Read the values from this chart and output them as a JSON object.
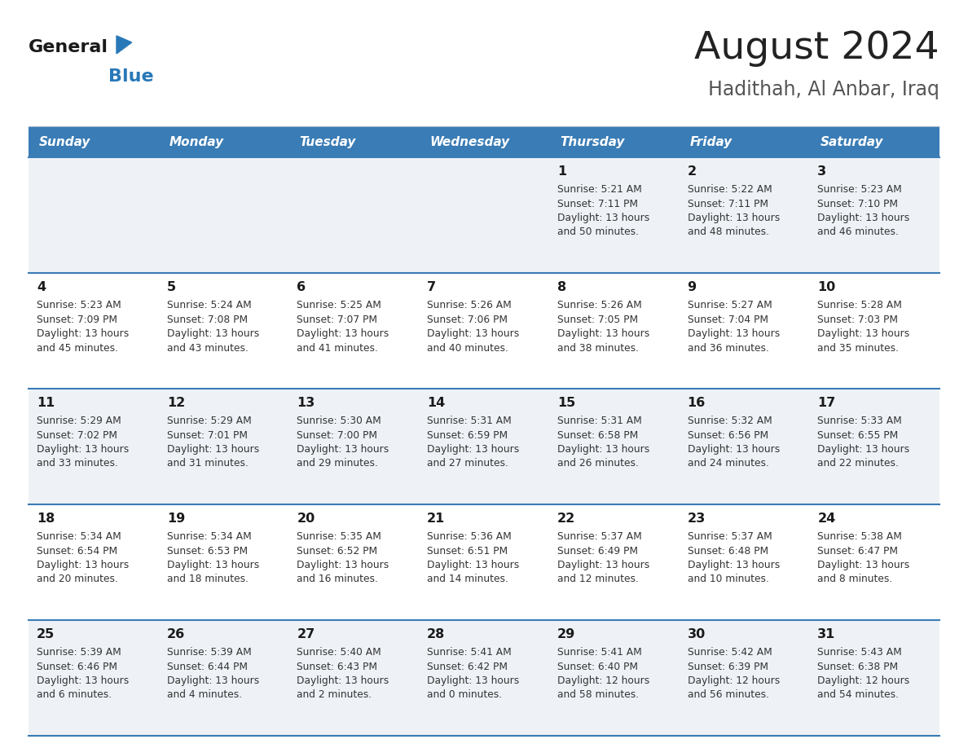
{
  "title": "August 2024",
  "subtitle": "Hadithah, Al Anbar, Iraq",
  "days_of_week": [
    "Sunday",
    "Monday",
    "Tuesday",
    "Wednesday",
    "Thursday",
    "Friday",
    "Saturday"
  ],
  "header_bg": "#3a7cb5",
  "header_text": "#ffffff",
  "row_bg_odd": "#eef2f7",
  "row_bg_even": "#ffffff",
  "title_color": "#222222",
  "subtitle_color": "#555555",
  "day_number_color": "#1a1a1a",
  "cell_text_color": "#333333",
  "grid_line_color": "#3a7cb5",
  "logo_general_color": "#1a1a1a",
  "logo_blue_color": "#2878b8",
  "calendar": [
    [
      {
        "day": null,
        "sunrise": null,
        "sunset": null,
        "daylight": null
      },
      {
        "day": null,
        "sunrise": null,
        "sunset": null,
        "daylight": null
      },
      {
        "day": null,
        "sunrise": null,
        "sunset": null,
        "daylight": null
      },
      {
        "day": null,
        "sunrise": null,
        "sunset": null,
        "daylight": null
      },
      {
        "day": 1,
        "sunrise": "5:21 AM",
        "sunset": "7:11 PM",
        "daylight": "13 hours\nand 50 minutes."
      },
      {
        "day": 2,
        "sunrise": "5:22 AM",
        "sunset": "7:11 PM",
        "daylight": "13 hours\nand 48 minutes."
      },
      {
        "day": 3,
        "sunrise": "5:23 AM",
        "sunset": "7:10 PM",
        "daylight": "13 hours\nand 46 minutes."
      }
    ],
    [
      {
        "day": 4,
        "sunrise": "5:23 AM",
        "sunset": "7:09 PM",
        "daylight": "13 hours\nand 45 minutes."
      },
      {
        "day": 5,
        "sunrise": "5:24 AM",
        "sunset": "7:08 PM",
        "daylight": "13 hours\nand 43 minutes."
      },
      {
        "day": 6,
        "sunrise": "5:25 AM",
        "sunset": "7:07 PM",
        "daylight": "13 hours\nand 41 minutes."
      },
      {
        "day": 7,
        "sunrise": "5:26 AM",
        "sunset": "7:06 PM",
        "daylight": "13 hours\nand 40 minutes."
      },
      {
        "day": 8,
        "sunrise": "5:26 AM",
        "sunset": "7:05 PM",
        "daylight": "13 hours\nand 38 minutes."
      },
      {
        "day": 9,
        "sunrise": "5:27 AM",
        "sunset": "7:04 PM",
        "daylight": "13 hours\nand 36 minutes."
      },
      {
        "day": 10,
        "sunrise": "5:28 AM",
        "sunset": "7:03 PM",
        "daylight": "13 hours\nand 35 minutes."
      }
    ],
    [
      {
        "day": 11,
        "sunrise": "5:29 AM",
        "sunset": "7:02 PM",
        "daylight": "13 hours\nand 33 minutes."
      },
      {
        "day": 12,
        "sunrise": "5:29 AM",
        "sunset": "7:01 PM",
        "daylight": "13 hours\nand 31 minutes."
      },
      {
        "day": 13,
        "sunrise": "5:30 AM",
        "sunset": "7:00 PM",
        "daylight": "13 hours\nand 29 minutes."
      },
      {
        "day": 14,
        "sunrise": "5:31 AM",
        "sunset": "6:59 PM",
        "daylight": "13 hours\nand 27 minutes."
      },
      {
        "day": 15,
        "sunrise": "5:31 AM",
        "sunset": "6:58 PM",
        "daylight": "13 hours\nand 26 minutes."
      },
      {
        "day": 16,
        "sunrise": "5:32 AM",
        "sunset": "6:56 PM",
        "daylight": "13 hours\nand 24 minutes."
      },
      {
        "day": 17,
        "sunrise": "5:33 AM",
        "sunset": "6:55 PM",
        "daylight": "13 hours\nand 22 minutes."
      }
    ],
    [
      {
        "day": 18,
        "sunrise": "5:34 AM",
        "sunset": "6:54 PM",
        "daylight": "13 hours\nand 20 minutes."
      },
      {
        "day": 19,
        "sunrise": "5:34 AM",
        "sunset": "6:53 PM",
        "daylight": "13 hours\nand 18 minutes."
      },
      {
        "day": 20,
        "sunrise": "5:35 AM",
        "sunset": "6:52 PM",
        "daylight": "13 hours\nand 16 minutes."
      },
      {
        "day": 21,
        "sunrise": "5:36 AM",
        "sunset": "6:51 PM",
        "daylight": "13 hours\nand 14 minutes."
      },
      {
        "day": 22,
        "sunrise": "5:37 AM",
        "sunset": "6:49 PM",
        "daylight": "13 hours\nand 12 minutes."
      },
      {
        "day": 23,
        "sunrise": "5:37 AM",
        "sunset": "6:48 PM",
        "daylight": "13 hours\nand 10 minutes."
      },
      {
        "day": 24,
        "sunrise": "5:38 AM",
        "sunset": "6:47 PM",
        "daylight": "13 hours\nand 8 minutes."
      }
    ],
    [
      {
        "day": 25,
        "sunrise": "5:39 AM",
        "sunset": "6:46 PM",
        "daylight": "13 hours\nand 6 minutes."
      },
      {
        "day": 26,
        "sunrise": "5:39 AM",
        "sunset": "6:44 PM",
        "daylight": "13 hours\nand 4 minutes."
      },
      {
        "day": 27,
        "sunrise": "5:40 AM",
        "sunset": "6:43 PM",
        "daylight": "13 hours\nand 2 minutes."
      },
      {
        "day": 28,
        "sunrise": "5:41 AM",
        "sunset": "6:42 PM",
        "daylight": "13 hours\nand 0 minutes."
      },
      {
        "day": 29,
        "sunrise": "5:41 AM",
        "sunset": "6:40 PM",
        "daylight": "12 hours\nand 58 minutes."
      },
      {
        "day": 30,
        "sunrise": "5:42 AM",
        "sunset": "6:39 PM",
        "daylight": "12 hours\nand 56 minutes."
      },
      {
        "day": 31,
        "sunrise": "5:43 AM",
        "sunset": "6:38 PM",
        "daylight": "12 hours\nand 54 minutes."
      }
    ]
  ]
}
